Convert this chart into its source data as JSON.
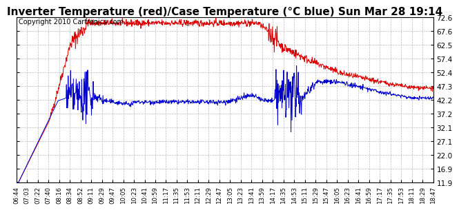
{
  "title": "Inverter Temperature (red)/Case Temperature (°C blue) Sun Mar 28 19:14",
  "copyright": "Copyright 2010 Cartronics.com",
  "y_ticks": [
    11.9,
    16.9,
    22.0,
    27.1,
    32.1,
    37.2,
    42.2,
    47.3,
    52.4,
    57.4,
    62.5,
    67.6,
    72.6
  ],
  "y_min": 11.9,
  "y_max": 72.6,
  "x_labels": [
    "06:44",
    "07:03",
    "07:22",
    "07:40",
    "08:16",
    "08:34",
    "08:52",
    "09:11",
    "09:29",
    "09:47",
    "10:05",
    "10:23",
    "10:41",
    "10:59",
    "11:17",
    "11:35",
    "11:53",
    "12:11",
    "12:29",
    "12:47",
    "13:05",
    "13:23",
    "13:41",
    "13:59",
    "14:17",
    "14:35",
    "14:53",
    "15:11",
    "15:29",
    "15:47",
    "16:05",
    "16:23",
    "16:41",
    "16:59",
    "17:17",
    "17:35",
    "17:53",
    "18:11",
    "18:29",
    "18:47"
  ],
  "bg_color": "#ffffff",
  "grid_color": "#bbbbbb",
  "red_line_color": "#dd0000",
  "blue_line_color": "#0000cc",
  "title_font_size": 11,
  "copyright_font_size": 7
}
